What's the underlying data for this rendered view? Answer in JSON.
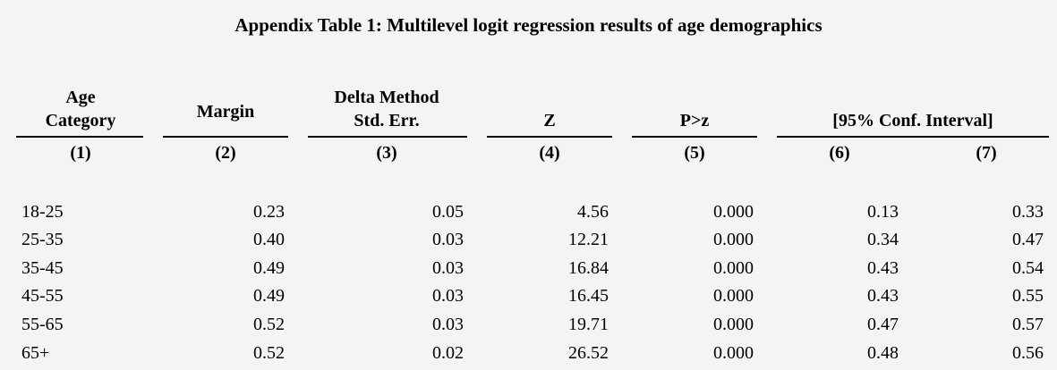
{
  "title": "Appendix Table 1: Multilevel logit regression results of age demographics",
  "headers": {
    "c1_line1": "Age",
    "c1_line2": "Category",
    "c2": "Margin",
    "c3_line1": "Delta Method",
    "c3_line2": "Std. Err.",
    "c4": "Z",
    "c5": "P>z",
    "c67": "[95% Conf. Interval]"
  },
  "column_numbers": [
    "(1)",
    "(2)",
    "(3)",
    "(4)",
    "(5)",
    "(6)",
    "(7)"
  ],
  "rows": [
    [
      "18-25",
      "0.23",
      "0.05",
      "4.56",
      "0.000",
      "0.13",
      "0.33"
    ],
    [
      "25-35",
      "0.40",
      "0.03",
      "12.21",
      "0.000",
      "0.34",
      "0.47"
    ],
    [
      "35-45",
      "0.49",
      "0.03",
      "16.84",
      "0.000",
      "0.43",
      "0.54"
    ],
    [
      "45-55",
      "0.49",
      "0.03",
      "16.45",
      "0.000",
      "0.43",
      "0.55"
    ],
    [
      "55-65",
      "0.52",
      "0.03",
      "19.71",
      "0.000",
      "0.47",
      "0.57"
    ],
    [
      "65+",
      "0.52",
      "0.02",
      "26.52",
      "0.000",
      "0.48",
      "0.56"
    ]
  ]
}
